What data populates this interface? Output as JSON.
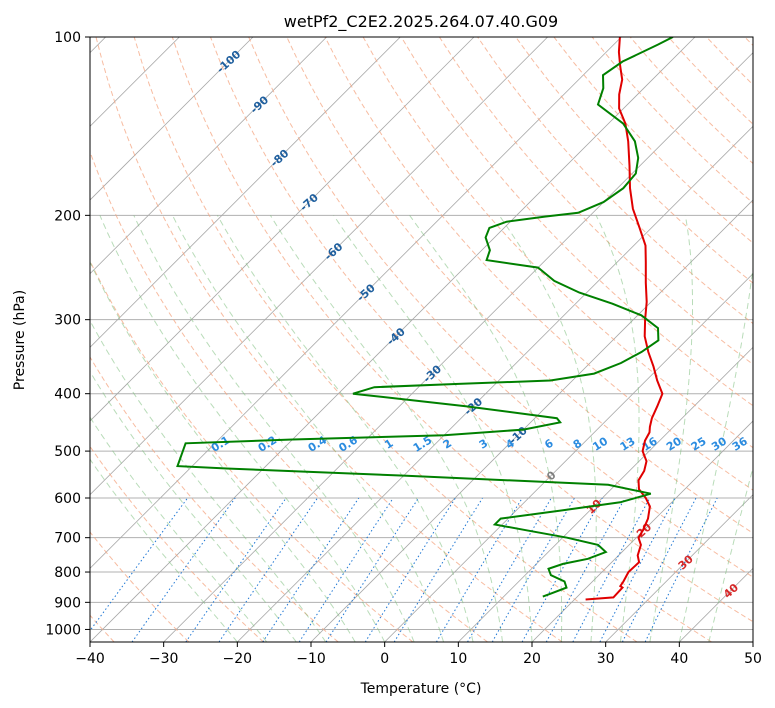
{
  "chart_data": {
    "type": "skew-t",
    "title": "wetPf2_C2E2.2025.264.07.40.G09",
    "xlabel": "Temperature (°C)",
    "ylabel": "Pressure (hPa)",
    "xlim": [
      -40,
      50
    ],
    "ylim": [
      1050,
      100
    ],
    "y_scale": "log",
    "x_ticks": [
      -40,
      -30,
      -20,
      -10,
      0,
      10,
      20,
      30,
      40,
      50
    ],
    "y_ticks": [
      100,
      200,
      300,
      400,
      500,
      600,
      700,
      800,
      900,
      1000
    ],
    "grid": true,
    "isotherm_labels": [
      -100,
      -90,
      -80,
      -70,
      -60,
      -50,
      -40,
      -30,
      -20,
      -10,
      0,
      10,
      20,
      30,
      40
    ],
    "mixing_ratio_labels": [
      "0.1",
      "0.2",
      "0.4",
      "0.6",
      "1",
      "1.5",
      "2",
      "3",
      "4",
      "6",
      "8",
      "10",
      "13",
      "16",
      "20",
      "25",
      "30",
      "36"
    ],
    "mixing_ratio_values": [
      0.1,
      0.2,
      0.4,
      0.6,
      1,
      1.5,
      2,
      3,
      4,
      6,
      8,
      10,
      13,
      16,
      20,
      25,
      30,
      36
    ],
    "series": [
      {
        "role": "temperature",
        "color": "#e00000",
        "points": [
          {
            "p": 890,
            "t": 21.5
          },
          {
            "p": 883,
            "t": 25
          },
          {
            "p": 850,
            "t": 24.9
          },
          {
            "p": 845,
            "t": 24.4
          },
          {
            "p": 830,
            "t": 24.2
          },
          {
            "p": 800,
            "t": 23.6
          },
          {
            "p": 770,
            "t": 23.7
          },
          {
            "p": 750,
            "t": 22.6
          },
          {
            "p": 720,
            "t": 21.6
          },
          {
            "p": 700,
            "t": 20.3
          },
          {
            "p": 680,
            "t": 19.9
          },
          {
            "p": 650,
            "t": 19.0
          },
          {
            "p": 620,
            "t": 17.6
          },
          {
            "p": 600,
            "t": 15.9
          },
          {
            "p": 580,
            "t": 13.8
          },
          {
            "p": 560,
            "t": 12.5
          },
          {
            "p": 540,
            "t": 12.0
          },
          {
            "p": 520,
            "t": 11.0
          },
          {
            "p": 500,
            "t": 9.1
          },
          {
            "p": 480,
            "t": 8.0
          },
          {
            "p": 465,
            "t": 7.5
          },
          {
            "p": 455,
            "t": 6.8
          },
          {
            "p": 440,
            "t": 5.9
          },
          {
            "p": 420,
            "t": 5.0
          },
          {
            "p": 400,
            "t": 4.0
          },
          {
            "p": 380,
            "t": 1.5
          },
          {
            "p": 360,
            "t": -0.9
          },
          {
            "p": 340,
            "t": -3.6
          },
          {
            "p": 320,
            "t": -6.2
          },
          {
            "p": 300,
            "t": -8.4
          },
          {
            "p": 280,
            "t": -10.6
          },
          {
            "p": 260,
            "t": -13.3
          },
          {
            "p": 240,
            "t": -16.1
          },
          {
            "p": 225,
            "t": -18.4
          },
          {
            "p": 210,
            "t": -21.6
          },
          {
            "p": 195,
            "t": -25.1
          },
          {
            "p": 180,
            "t": -28.3
          },
          {
            "p": 165,
            "t": -31.4
          },
          {
            "p": 150,
            "t": -34.9
          },
          {
            "p": 140,
            "t": -37.7
          },
          {
            "p": 132,
            "t": -40.6
          },
          {
            "p": 125,
            "t": -42.5
          },
          {
            "p": 118,
            "t": -44.1
          },
          {
            "p": 112,
            "t": -46.2
          },
          {
            "p": 106,
            "t": -48.3
          },
          {
            "p": 100,
            "t": -50.2
          }
        ]
      },
      {
        "role": "dewpoint",
        "color": "#008000",
        "points": [
          {
            "p": 880,
            "t": 15.3
          },
          {
            "p": 870,
            "t": 16.0
          },
          {
            "p": 850,
            "t": 17.3
          },
          {
            "p": 830,
            "t": 16.2
          },
          {
            "p": 810,
            "t": 13.5
          },
          {
            "p": 790,
            "t": 12.3
          },
          {
            "p": 775,
            "t": 13.6
          },
          {
            "p": 760,
            "t": 16.3
          },
          {
            "p": 740,
            "t": 17.8
          },
          {
            "p": 720,
            "t": 15.8
          },
          {
            "p": 700,
            "t": 10.6
          },
          {
            "p": 680,
            "t": 4.0
          },
          {
            "p": 665,
            "t": -1.0
          },
          {
            "p": 650,
            "t": -1.0
          },
          {
            "p": 630,
            "t": 6.0
          },
          {
            "p": 610,
            "t": 13.0
          },
          {
            "p": 590,
            "t": 16.0
          },
          {
            "p": 570,
            "t": 9.0
          },
          {
            "p": 550,
            "t": -20.0
          },
          {
            "p": 535,
            "t": -45.0
          },
          {
            "p": 530,
            "t": -52.0
          },
          {
            "p": 485,
            "t": -54.0
          },
          {
            "p": 478,
            "t": -40.0
          },
          {
            "p": 470,
            "t": -20.0
          },
          {
            "p": 460,
            "t": -10.0
          },
          {
            "p": 447,
            "t": -6.0
          },
          {
            "p": 440,
            "t": -7.0
          },
          {
            "p": 420,
            "t": -21.0
          },
          {
            "p": 400,
            "t": -38.0
          },
          {
            "p": 390,
            "t": -36.0
          },
          {
            "p": 385,
            "t": -25.0
          },
          {
            "p": 380,
            "t": -13.0
          },
          {
            "p": 370,
            "t": -8.0
          },
          {
            "p": 355,
            "t": -5.8
          },
          {
            "p": 340,
            "t": -4.5
          },
          {
            "p": 325,
            "t": -3.8
          },
          {
            "p": 310,
            "t": -5.5
          },
          {
            "p": 295,
            "t": -9.5
          },
          {
            "p": 282,
            "t": -15.0
          },
          {
            "p": 270,
            "t": -21.0
          },
          {
            "p": 258,
            "t": -26.0
          },
          {
            "p": 245,
            "t": -30.0
          },
          {
            "p": 238,
            "t": -38.0
          },
          {
            "p": 229,
            "t": -38.9
          },
          {
            "p": 218,
            "t": -41.2
          },
          {
            "p": 210,
            "t": -42.0
          },
          {
            "p": 205,
            "t": -40.5
          },
          {
            "p": 201,
            "t": -36.0
          },
          {
            "p": 198,
            "t": -32.0
          },
          {
            "p": 190,
            "t": -30.0
          },
          {
            "p": 180,
            "t": -29.2
          },
          {
            "p": 170,
            "t": -29.5
          },
          {
            "p": 160,
            "t": -31.3
          },
          {
            "p": 150,
            "t": -34.0
          },
          {
            "p": 140,
            "t": -38.0
          },
          {
            "p": 130,
            "t": -44.0
          },
          {
            "p": 122,
            "t": -45.5
          },
          {
            "p": 116,
            "t": -47.3
          },
          {
            "p": 110,
            "t": -46.5
          },
          {
            "p": 103,
            "t": -44.0
          },
          {
            "p": 100,
            "t": -43.0
          }
        ]
      }
    ]
  }
}
